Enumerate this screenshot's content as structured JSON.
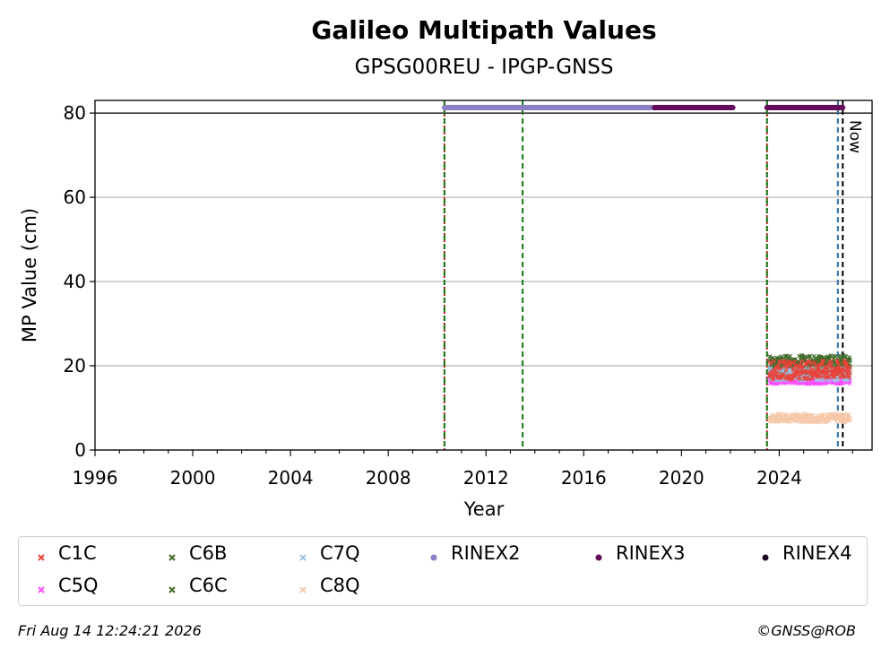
{
  "chart_data": {
    "type": "scatter",
    "title": "Galileo Multipath Values",
    "subtitle": "GPSG00REU - IPGP-GNSS",
    "xlabel": "Year",
    "ylabel": "MP Value (cm)",
    "xlim": [
      1996,
      2027.8
    ],
    "ylim": [
      0,
      83
    ],
    "x_ticks": [
      1996,
      2000,
      2004,
      2008,
      2012,
      2016,
      2020,
      2024
    ],
    "x_tick_labels": [
      "1996",
      "2000",
      "2004",
      "2008",
      "2012",
      "2016",
      "2020",
      "2024"
    ],
    "y_ticks": [
      0,
      20,
      40,
      60,
      80
    ],
    "y_tick_labels": [
      "0",
      "20",
      "40",
      "60",
      "80"
    ],
    "grid": "horizontal",
    "legend_position": "bottom",
    "now_label": "Now",
    "series": [
      {
        "name": "C1C",
        "marker": "x",
        "color": "#e8433a",
        "x_range": [
          2023.6,
          2026.9
        ],
        "y_mean": 19.0,
        "y_spread": 2.2
      },
      {
        "name": "C5Q",
        "marker": "x",
        "color": "#ff4dff",
        "x_range": [
          2023.6,
          2026.9
        ],
        "y_mean": 16.5,
        "y_spread": 0.8
      },
      {
        "name": "C6B",
        "marker": "x",
        "color": "#3f6b2a",
        "x_range": [
          2023.6,
          2026.9
        ],
        "y_mean": 20.5,
        "y_spread": 2.0
      },
      {
        "name": "C6C",
        "marker": "x",
        "color": "#3f6b2a",
        "x_range": [
          2023.6,
          2026.9
        ],
        "y_mean": 19.5,
        "y_spread": 2.0
      },
      {
        "name": "C7Q",
        "marker": "x",
        "color": "#9cc3e6",
        "x_range": [
          2023.6,
          2026.9
        ],
        "y_mean": 18.0,
        "y_spread": 1.5
      },
      {
        "name": "C8Q",
        "marker": "x",
        "color": "#f5c8a8",
        "x_range": [
          2023.6,
          2026.9
        ],
        "y_mean": 7.6,
        "y_spread": 1.0
      },
      {
        "name": "RINEX2",
        "marker": "dot",
        "color": "#8b80c4",
        "segments": [
          [
            2010.3,
            2018.9
          ]
        ],
        "y": 81.3
      },
      {
        "name": "RINEX3",
        "marker": "dot",
        "color": "#650a5a",
        "segments": [
          [
            2018.9,
            2022.1
          ],
          [
            2023.5,
            2026.6
          ]
        ],
        "y": 81.3
      },
      {
        "name": "RINEX4",
        "marker": "dot",
        "color": "#1a0320",
        "segments": [],
        "y": 81.3
      }
    ],
    "reference_lines": [
      {
        "x": 2010.3,
        "color": "#c41e1e",
        "style": "dotted"
      },
      {
        "x": 2010.3,
        "color": "#117711",
        "style": "dashed"
      },
      {
        "x": 2013.5,
        "color": "#117711",
        "style": "dashed"
      },
      {
        "x": 2023.5,
        "color": "#c41e1e",
        "style": "dotted"
      },
      {
        "x": 2023.5,
        "color": "#117711",
        "style": "dashed"
      },
      {
        "x": 2026.4,
        "color": "#2b6ea6",
        "style": "dashed"
      },
      {
        "x": 2026.6,
        "color": "#000000",
        "style": "dashed"
      }
    ],
    "hline": 80
  },
  "footer": {
    "timestamp": "Fri Aug 14 12:24:21 2026",
    "credit": "©GNSS@ROB"
  }
}
